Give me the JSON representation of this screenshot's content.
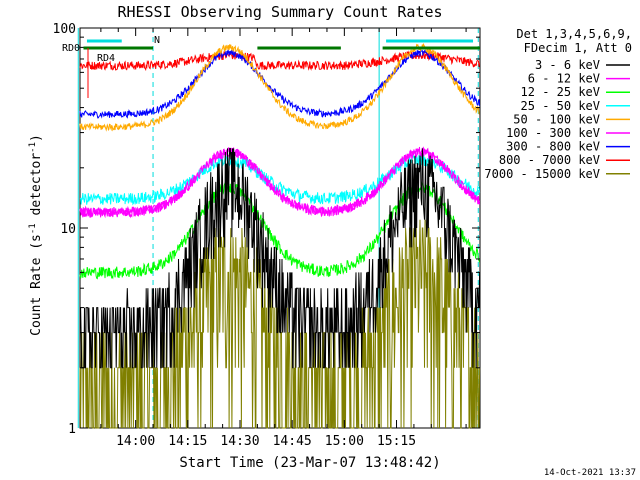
{
  "chart_data": {
    "type": "line",
    "title": "RHESSI Observing Summary Count Rates",
    "xlabel": "Start Time (23-Mar-07 13:48:42)",
    "ylabel_main": "Count Rate (s",
    "ylabel_sup1": "-1",
    "ylabel_mid": " detector",
    "ylabel_sup2": "-1",
    "ylabel_end": ")",
    "footer": "14-Oct-2021 13:37",
    "yscale": "log",
    "ylim": [
      1,
      100
    ],
    "xlim_minutes": [
      -16,
      99
    ],
    "x_ticks": [
      {
        "m": 0,
        "label": "14:00"
      },
      {
        "m": 15,
        "label": "14:15"
      },
      {
        "m": 30,
        "label": "14:30"
      },
      {
        "m": 45,
        "label": "14:45"
      },
      {
        "m": 60,
        "label": "15:00"
      },
      {
        "m": 75,
        "label": "15:15"
      }
    ],
    "y_ticks": [
      {
        "v": 1,
        "label": "1"
      },
      {
        "v": 10,
        "label": "10"
      },
      {
        "v": 100,
        "label": "100"
      }
    ],
    "legend_header": [
      "Det 1,3,4,5,6,9,",
      "FDecim 1, Att 0"
    ],
    "series": [
      {
        "name": "3 - 6 keV",
        "color": "#000000",
        "y_day": 3.0,
        "y_peak": 17,
        "noise": 0.5,
        "stepped": true
      },
      {
        "name": "6 - 12 keV",
        "color": "#ff00ff",
        "y_day": 12.0,
        "y_peak": 24,
        "noise": 0.06
      },
      {
        "name": "12 - 25 keV",
        "color": "#00ff00",
        "y_day": 6.0,
        "y_peak": 16,
        "noise": 0.07
      },
      {
        "name": "25 - 50 keV",
        "color": "#00ffff",
        "y_day": 14.0,
        "y_peak": 22,
        "noise": 0.07
      },
      {
        "name": "50 - 100 keV",
        "color": "#ffaa00",
        "y_day": 32.0,
        "y_peak": 80,
        "noise": 0.04
      },
      {
        "name": "100 - 300 keV",
        "color": "#ff00ff",
        "y_day": 12.0,
        "y_peak": 24,
        "noise": 0.05
      },
      {
        "name": "300 - 800 keV",
        "color": "#0000ff",
        "y_day": 37.0,
        "y_peak": 75,
        "noise": 0.04
      },
      {
        "name": "800 - 7000 keV",
        "color": "#ff0000",
        "y_day": 65.0,
        "y_peak": 73,
        "noise": 0.05
      },
      {
        "name": "7000 - 15000 keV",
        "color": "#808000",
        "y_day": 1.6,
        "y_peak": 6,
        "noise": 0.9,
        "stepped": true
      }
    ],
    "orbits": [
      {
        "start": -14.5,
        "end": 5.5
      },
      {
        "start": 34.5,
        "end": 62.5
      }
    ],
    "peaks": [
      {
        "center": 27,
        "width": 13
      },
      {
        "center": 82,
        "width": 13
      }
    ],
    "flags": [
      {
        "label": "RD0",
        "color": "#007700"
      },
      {
        "label": "RD4",
        "color": "#007700"
      },
      {
        "label": "N",
        "color": "#00dddd"
      }
    ],
    "flag_intervals": {
      "RD0": [
        [
          -15,
          5
        ],
        [
          35,
          59
        ],
        [
          71,
          99
        ]
      ],
      "N": [
        [
          -14,
          -4
        ],
        [
          72,
          97
        ]
      ]
    },
    "vlines": [
      {
        "m": -16.5,
        "style": "solid"
      },
      {
        "m": 5,
        "style": "dashed"
      },
      {
        "m": 70,
        "style": "solid"
      },
      {
        "m": 98.5,
        "style": "dashed"
      }
    ]
  }
}
